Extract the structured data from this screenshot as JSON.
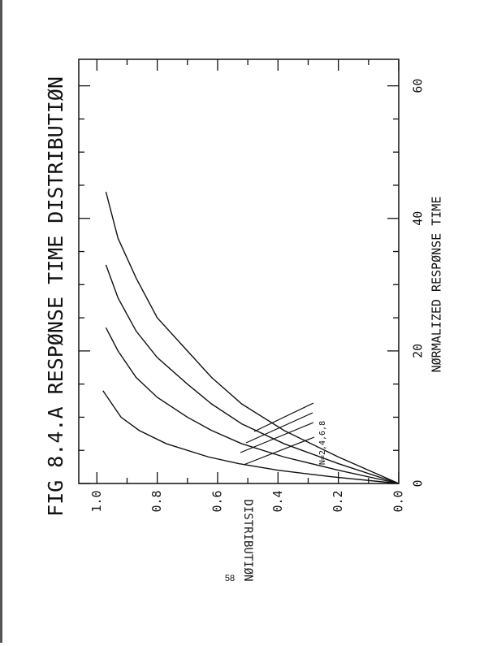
{
  "chart_data": {
    "type": "line",
    "title": "FIG 8.4.A RESPØNSE TIME DISTRIBUTIØN",
    "x_label": "NØRMALIZED RESPØNSE TIME",
    "y_label": "DISTRIBUTIØN",
    "annotation": "N=2,4,6,8",
    "page_number": "58",
    "xlim": [
      0,
      64
    ],
    "ylim": [
      0,
      1.06
    ],
    "xticks": [
      0,
      20,
      40,
      60
    ],
    "xminorticks": [
      5,
      10,
      15,
      25,
      30,
      35,
      45,
      50,
      55
    ],
    "yticks": [
      {
        "value": 0,
        "label": "0.0"
      },
      0.2,
      0.4,
      0.6,
      0.8,
      {
        "value": 1,
        "label": "1.0"
      }
    ],
    "yminorticks": [
      0.1,
      0.3,
      0.5,
      0.7,
      0.9
    ],
    "color": "#111111",
    "series": [
      {
        "name": "N=2",
        "x": [
          0,
          1,
          2,
          3,
          4,
          6,
          8,
          10,
          12,
          14
        ],
        "values": [
          0,
          0.22,
          0.4,
          0.53,
          0.63,
          0.77,
          0.86,
          0.92,
          0.95,
          0.98
        ]
      },
      {
        "name": "N=4",
        "x": [
          0,
          2,
          4,
          6,
          8,
          10,
          13,
          16,
          20,
          23.5
        ],
        "values": [
          0,
          0.2,
          0.38,
          0.52,
          0.62,
          0.7,
          0.8,
          0.87,
          0.93,
          0.97
        ]
      },
      {
        "name": "N=6",
        "x": [
          0,
          3,
          6,
          9,
          12,
          15,
          19,
          23,
          28,
          33
        ],
        "values": [
          0,
          0.2,
          0.38,
          0.52,
          0.62,
          0.7,
          0.8,
          0.87,
          0.93,
          0.97
        ]
      },
      {
        "name": "N=8",
        "x": [
          0,
          4,
          8,
          12,
          16,
          20,
          25,
          31,
          37,
          44
        ],
        "values": [
          0,
          0.2,
          0.38,
          0.52,
          0.62,
          0.7,
          0.8,
          0.87,
          0.93,
          0.97
        ]
      }
    ]
  }
}
